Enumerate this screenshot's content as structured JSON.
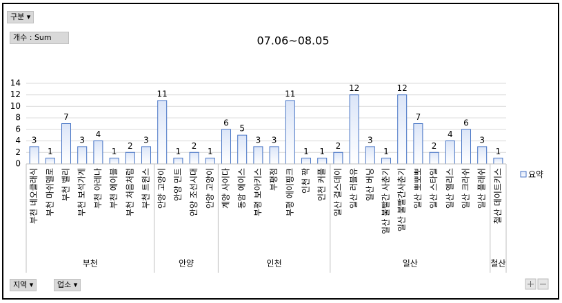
{
  "ui": {
    "filter_button": "구분",
    "value_button": "개수 : Sum",
    "axis_buttons": [
      "지역",
      "업소"
    ]
  },
  "chart_data": {
    "type": "bar",
    "title": "07.06~08.05",
    "groups": [
      {
        "name": "부천",
        "categories": [
          "부천 네오클래식",
          "부천 마쉬멜로",
          "부천 벨리",
          "부천 보석가게",
          "부천 아레나",
          "부천 에이블",
          "부천 처음처럼",
          "부천 트윈스"
        ]
      },
      {
        "name": "안양",
        "categories": [
          "안양 고양이",
          "안양 민트",
          "안양 조선시대",
          "안양 고양이"
        ]
      },
      {
        "name": "인천",
        "categories": [
          "계양 사이다",
          "동암 에이스",
          "부평 보아키스",
          "부평점",
          "부평 에이핑크",
          "인천 짝",
          "인천 커플"
        ]
      },
      {
        "name": "일산",
        "categories": [
          "일산 걸스데이",
          "일산 러블유",
          "일산 버닝",
          "일산 불빨간 사춘기",
          "일산 불빨간사춘기",
          "일산 뽀뽀뽀",
          "일산 스타일",
          "일산 엘리스",
          "일산 크라쉬",
          "일산 플래쉬"
        ]
      },
      {
        "name": "철산",
        "categories": [
          "철산 데이트키스"
        ]
      }
    ],
    "series": [
      {
        "name": "요약",
        "color": "#4472c4",
        "values": [
          3,
          1,
          7,
          3,
          4,
          1,
          2,
          3,
          11,
          1,
          2,
          1,
          6,
          5,
          3,
          3,
          11,
          1,
          1,
          2,
          12,
          3,
          1,
          12,
          7,
          2,
          4,
          6,
          3,
          1
        ]
      }
    ],
    "ylim": [
      0,
      14
    ],
    "yticks": [
      0,
      2,
      4,
      6,
      8,
      10,
      12,
      14
    ],
    "grid": true,
    "legend": "right"
  }
}
